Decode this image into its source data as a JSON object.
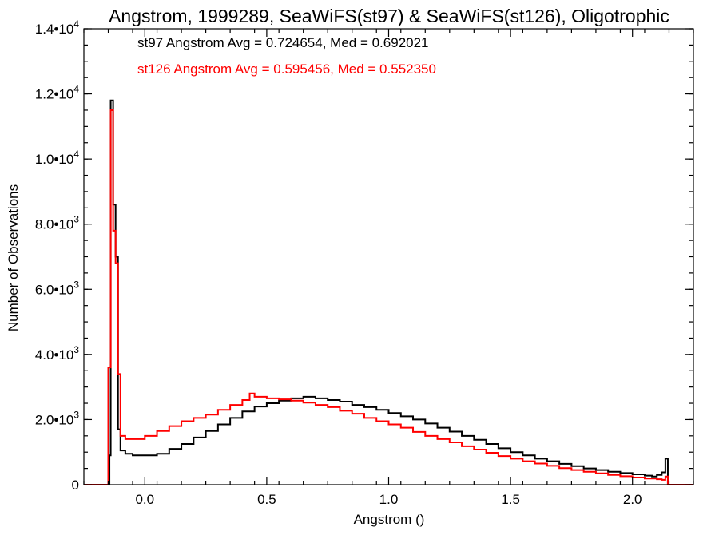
{
  "chart_data": {
    "type": "step-histogram",
    "title": "Angstrom, 1999289, SeaWiFS(st97) & SeaWiFS(st126), Oligotrophic",
    "xlabel": "Angstrom ()",
    "ylabel": "Number of Observations",
    "xlim": [
      -0.25,
      2.25
    ],
    "ylim": [
      0,
      14000
    ],
    "x_ticks": [
      {
        "value": 0.0,
        "label": "0.0"
      },
      {
        "value": 0.5,
        "label": "0.5"
      },
      {
        "value": 1.0,
        "label": "1.0"
      },
      {
        "value": 1.5,
        "label": "1.5"
      },
      {
        "value": 2.0,
        "label": "2.0"
      }
    ],
    "y_ticks": [
      {
        "value": 0,
        "mantissa": "0",
        "exp": ""
      },
      {
        "value": 2000,
        "mantissa": "2.0•10",
        "exp": "3"
      },
      {
        "value": 4000,
        "mantissa": "4.0•10",
        "exp": "3"
      },
      {
        "value": 6000,
        "mantissa": "6.0•10",
        "exp": "3"
      },
      {
        "value": 8000,
        "mantissa": "8.0•10",
        "exp": "3"
      },
      {
        "value": 10000,
        "mantissa": "1.0•10",
        "exp": "4"
      },
      {
        "value": 12000,
        "mantissa": "1.2•10",
        "exp": "4"
      },
      {
        "value": 14000,
        "mantissa": "1.4•10",
        "exp": "4"
      }
    ],
    "grid": false,
    "annotations": [
      {
        "text": "st97 Angstrom Avg = 0.724654, Med = 0.692021",
        "color": "#000000"
      },
      {
        "text": "st126 Angstrom Avg = 0.595456, Med = 0.552350",
        "color": "#ff0000"
      }
    ],
    "series": [
      {
        "color": "#000000",
        "points": [
          [
            -0.26,
            0
          ],
          [
            -0.15,
            0
          ],
          [
            -0.145,
            900
          ],
          [
            -0.14,
            11800
          ],
          [
            -0.13,
            8600
          ],
          [
            -0.12,
            7000
          ],
          [
            -0.11,
            1700
          ],
          [
            -0.1,
            1050
          ],
          [
            -0.08,
            950
          ],
          [
            -0.05,
            900
          ],
          [
            0.0,
            900
          ],
          [
            0.05,
            950
          ],
          [
            0.1,
            1100
          ],
          [
            0.15,
            1250
          ],
          [
            0.2,
            1450
          ],
          [
            0.25,
            1650
          ],
          [
            0.3,
            1850
          ],
          [
            0.35,
            2050
          ],
          [
            0.4,
            2250
          ],
          [
            0.45,
            2400
          ],
          [
            0.5,
            2500
          ],
          [
            0.55,
            2580
          ],
          [
            0.6,
            2650
          ],
          [
            0.65,
            2700
          ],
          [
            0.7,
            2650
          ],
          [
            0.75,
            2600
          ],
          [
            0.8,
            2550
          ],
          [
            0.85,
            2450
          ],
          [
            0.9,
            2380
          ],
          [
            0.95,
            2300
          ],
          [
            1.0,
            2200
          ],
          [
            1.05,
            2100
          ],
          [
            1.1,
            2000
          ],
          [
            1.15,
            1880
          ],
          [
            1.2,
            1750
          ],
          [
            1.25,
            1630
          ],
          [
            1.3,
            1500
          ],
          [
            1.35,
            1380
          ],
          [
            1.4,
            1250
          ],
          [
            1.45,
            1120
          ],
          [
            1.5,
            1000
          ],
          [
            1.55,
            900
          ],
          [
            1.6,
            800
          ],
          [
            1.65,
            720
          ],
          [
            1.7,
            640
          ],
          [
            1.75,
            570
          ],
          [
            1.8,
            500
          ],
          [
            1.85,
            450
          ],
          [
            1.9,
            400
          ],
          [
            1.95,
            360
          ],
          [
            2.0,
            320
          ],
          [
            2.05,
            280
          ],
          [
            2.08,
            250
          ],
          [
            2.1,
            300
          ],
          [
            2.12,
            380
          ],
          [
            2.135,
            800
          ],
          [
            2.145,
            0
          ],
          [
            2.25,
            0
          ]
        ]
      },
      {
        "color": "#ff0000",
        "points": [
          [
            -0.26,
            0
          ],
          [
            -0.155,
            0
          ],
          [
            -0.15,
            3600
          ],
          [
            -0.14,
            11500
          ],
          [
            -0.13,
            7800
          ],
          [
            -0.12,
            6800
          ],
          [
            -0.11,
            3400
          ],
          [
            -0.1,
            1500
          ],
          [
            -0.08,
            1400
          ],
          [
            -0.05,
            1400
          ],
          [
            0.0,
            1500
          ],
          [
            0.05,
            1650
          ],
          [
            0.1,
            1800
          ],
          [
            0.15,
            1950
          ],
          [
            0.2,
            2050
          ],
          [
            0.25,
            2150
          ],
          [
            0.3,
            2300
          ],
          [
            0.35,
            2450
          ],
          [
            0.4,
            2600
          ],
          [
            0.43,
            2800
          ],
          [
            0.45,
            2700
          ],
          [
            0.5,
            2650
          ],
          [
            0.55,
            2620
          ],
          [
            0.6,
            2580
          ],
          [
            0.65,
            2520
          ],
          [
            0.7,
            2450
          ],
          [
            0.75,
            2380
          ],
          [
            0.8,
            2270
          ],
          [
            0.85,
            2180
          ],
          [
            0.9,
            2050
          ],
          [
            0.95,
            1950
          ],
          [
            1.0,
            1850
          ],
          [
            1.05,
            1750
          ],
          [
            1.1,
            1620
          ],
          [
            1.15,
            1500
          ],
          [
            1.2,
            1400
          ],
          [
            1.25,
            1300
          ],
          [
            1.3,
            1180
          ],
          [
            1.35,
            1080
          ],
          [
            1.4,
            980
          ],
          [
            1.45,
            880
          ],
          [
            1.5,
            800
          ],
          [
            1.55,
            720
          ],
          [
            1.6,
            650
          ],
          [
            1.65,
            580
          ],
          [
            1.7,
            510
          ],
          [
            1.75,
            450
          ],
          [
            1.8,
            400
          ],
          [
            1.85,
            350
          ],
          [
            1.9,
            300
          ],
          [
            1.95,
            260
          ],
          [
            2.0,
            220
          ],
          [
            2.05,
            190
          ],
          [
            2.1,
            170
          ],
          [
            2.12,
            150
          ],
          [
            2.135,
            250
          ],
          [
            2.145,
            0
          ],
          [
            2.25,
            0
          ]
        ]
      }
    ]
  }
}
